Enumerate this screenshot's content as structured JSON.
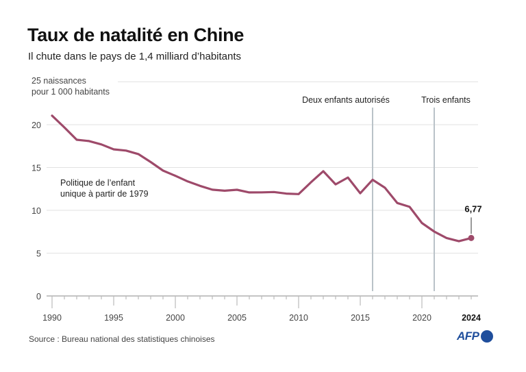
{
  "header": {
    "title": "Taux de natalité en Chine",
    "subtitle": "Il chute dans le pays de 1,4 milliard d’habitants"
  },
  "footer": {
    "source": "Source : Bureau national des statistiques chinoises",
    "logo": "AFP"
  },
  "colors": {
    "line": "#9e4a6a",
    "grid": "#e2e2e2",
    "marker_line": "#b9c2c8",
    "axis": "#888888",
    "logo": "#1f4e9c"
  },
  "chart_data": {
    "type": "line",
    "title": "Taux de natalité en Chine",
    "subtitle": "Il chute dans le pays de 1,4 milliard d’habitants",
    "ylabel": "naissances pour 1 000 habitants",
    "unit_label_line1": "25 naissances",
    "unit_label_line2": "pour 1 000 habitants",
    "xlabel": "",
    "xlim": [
      1990,
      2024
    ],
    "ylim": [
      0,
      25
    ],
    "y_ticks": [
      0,
      5,
      10,
      15,
      20,
      25
    ],
    "y_tick_labels": [
      "0",
      "5",
      "10",
      "15",
      "20",
      ""
    ],
    "x_ticks": [
      1990,
      1995,
      2000,
      2005,
      2010,
      2015,
      2020,
      2024
    ],
    "x_tick_labels": [
      "1990",
      "1995",
      "2000",
      "2005",
      "2010",
      "2015",
      "2020",
      "2024"
    ],
    "grid": true,
    "series": [
      {
        "name": "Taux de natalité",
        "x": [
          1990,
          1991,
          1992,
          1993,
          1994,
          1995,
          1996,
          1997,
          1998,
          1999,
          2000,
          2001,
          2002,
          2003,
          2004,
          2005,
          2006,
          2007,
          2008,
          2009,
          2010,
          2011,
          2012,
          2013,
          2014,
          2015,
          2016,
          2017,
          2018,
          2019,
          2020,
          2021,
          2022,
          2023,
          2024
        ],
        "values": [
          21.06,
          19.68,
          18.24,
          18.09,
          17.7,
          17.12,
          16.98,
          16.57,
          15.64,
          14.64,
          14.03,
          13.38,
          12.86,
          12.41,
          12.29,
          12.4,
          12.09,
          12.1,
          12.14,
          11.95,
          11.9,
          13.27,
          14.57,
          13.03,
          13.83,
          11.99,
          13.57,
          12.64,
          10.86,
          10.41,
          8.52,
          7.52,
          6.77,
          6.39,
          6.77
        ]
      }
    ],
    "annotations": [
      {
        "type": "vline",
        "x": 2016.0,
        "label": "Deux enfants autorisés"
      },
      {
        "type": "vline",
        "x": 2021.0,
        "label": "Trois enfants"
      },
      {
        "type": "text",
        "x": 1990.7,
        "y": 13.2,
        "line1": "Politique de l’enfant",
        "line2": "unique à partir de 1979"
      },
      {
        "type": "point-label",
        "x": 2024,
        "y": 6.77,
        "label": "6,77"
      }
    ]
  }
}
